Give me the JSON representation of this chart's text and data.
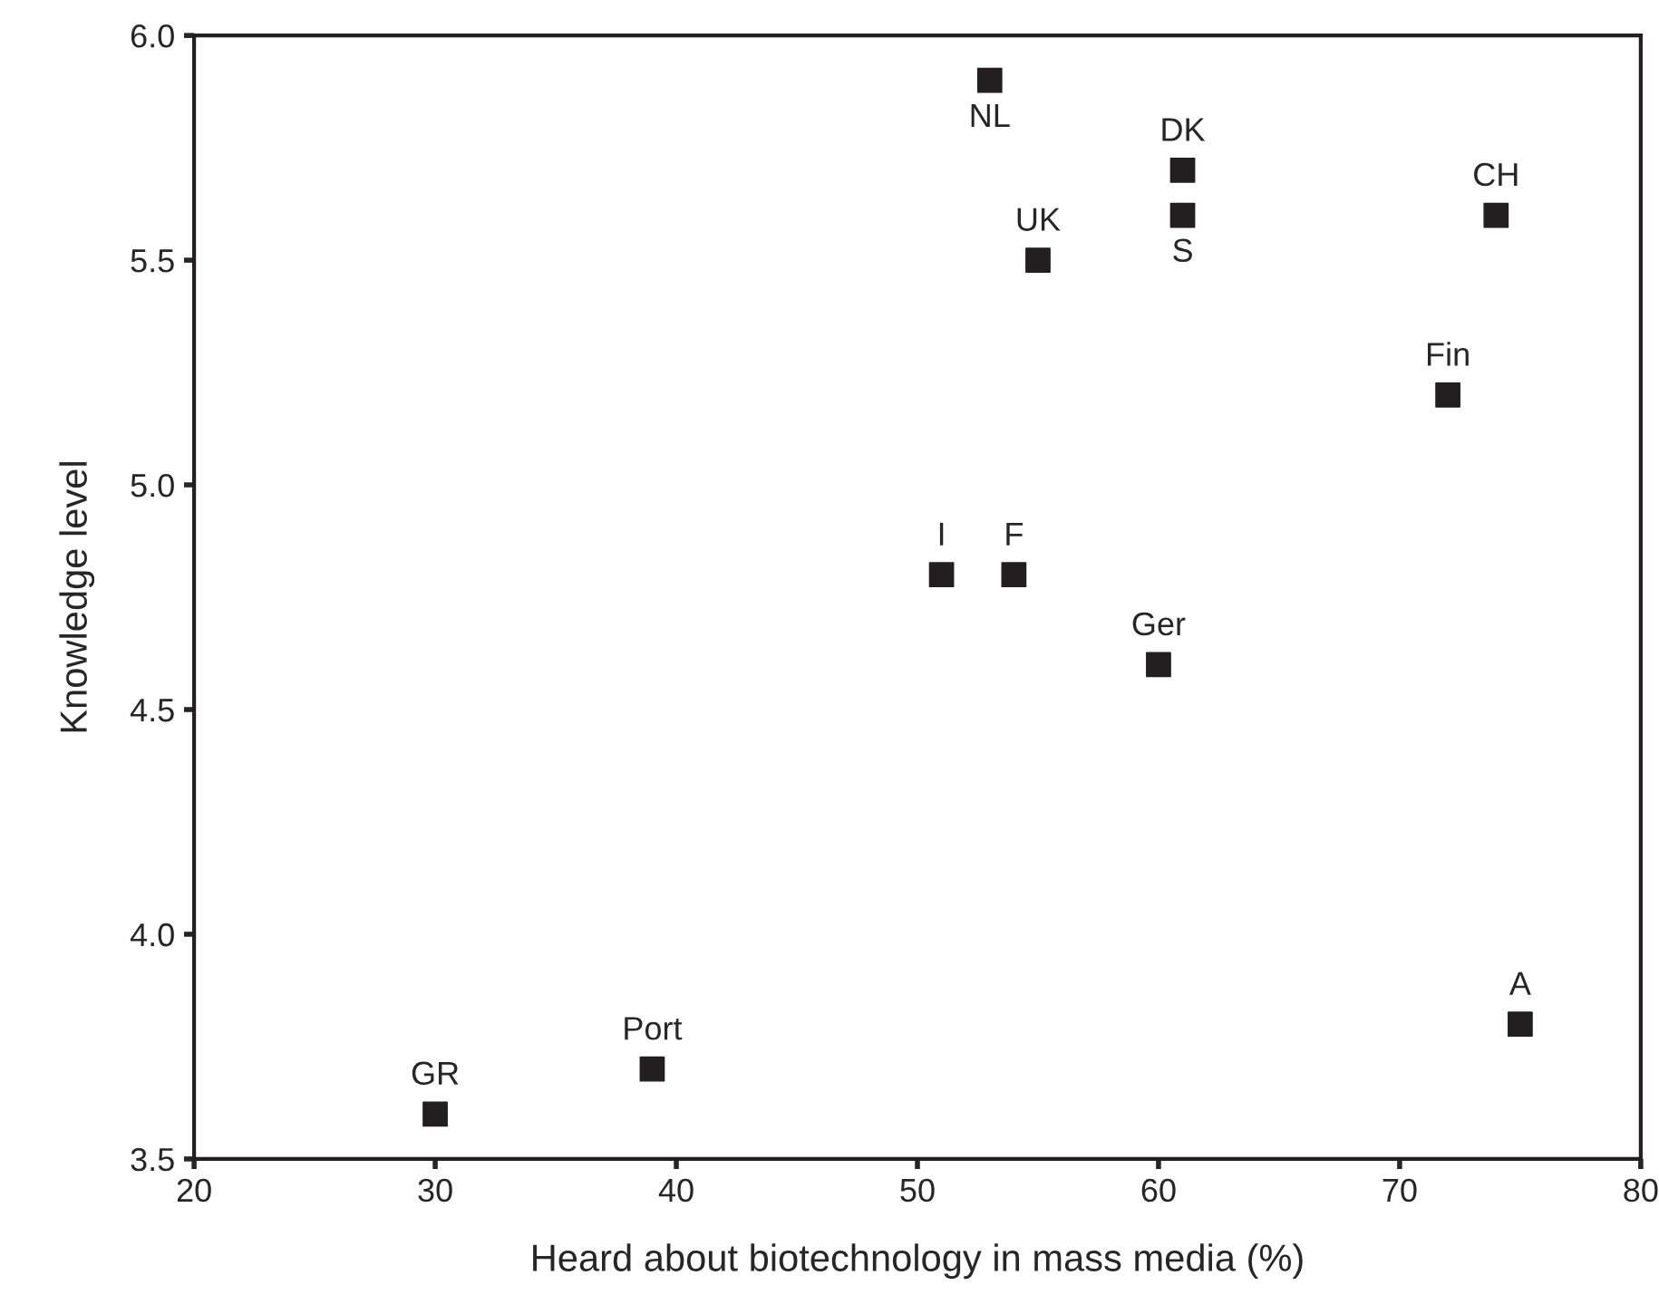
{
  "chart_data": {
    "type": "scatter",
    "xlabel": "Heard about biotechnology in mass media (%)",
    "ylabel": "Knowledge level",
    "x": [
      30,
      39,
      51,
      54,
      60,
      75,
      55,
      53,
      61,
      61,
      74,
      72
    ],
    "series": [
      {
        "color": "#231f20",
        "values": [
          3.6,
          3.7,
          4.8,
          4.8,
          4.6,
          3.8,
          5.5,
          5.9,
          5.7,
          5.6,
          5.6,
          5.2
        ],
        "value_labels": [
          "GR",
          "Port",
          "I",
          "F",
          "Ger",
          "A",
          "UK",
          "NL",
          "DK",
          "S",
          "CH",
          "Fin"
        ]
      }
    ],
    "xlim": [
      20,
      80
    ],
    "xticks": [
      20,
      30,
      40,
      50,
      60,
      70,
      80
    ],
    "ylim": [
      3.5,
      6.0
    ],
    "yticks": [
      {
        "value": 3.5,
        "label": "3.5"
      },
      {
        "value": 4.0,
        "label": "4.0"
      },
      {
        "value": 4.5,
        "label": "4.5"
      },
      {
        "value": 5.0,
        "label": "5.0"
      },
      {
        "value": 5.5,
        "label": "5.5"
      },
      {
        "value": 6.0,
        "label": "6.0"
      }
    ],
    "marker": "square",
    "grid": false
  }
}
